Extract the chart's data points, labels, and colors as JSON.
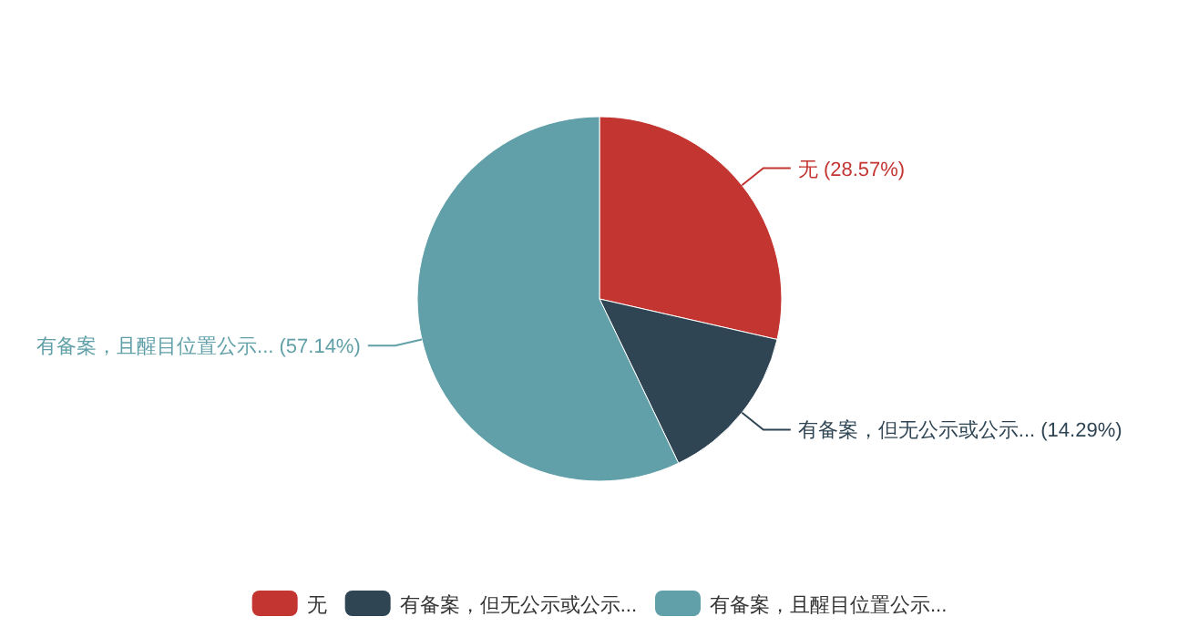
{
  "chart_data": {
    "type": "pie",
    "categories": [
      "无",
      "有备案，但无公示或公示...",
      "有备案，且醒目位置公示..."
    ],
    "values": [
      28.57,
      14.29,
      57.14
    ],
    "colors": [
      "#c23531",
      "#2f4554",
      "#61a0a8"
    ],
    "value_labels": [
      "(28.57%)",
      "(14.29%)",
      "(57.14%)"
    ],
    "legend": "bottom"
  }
}
